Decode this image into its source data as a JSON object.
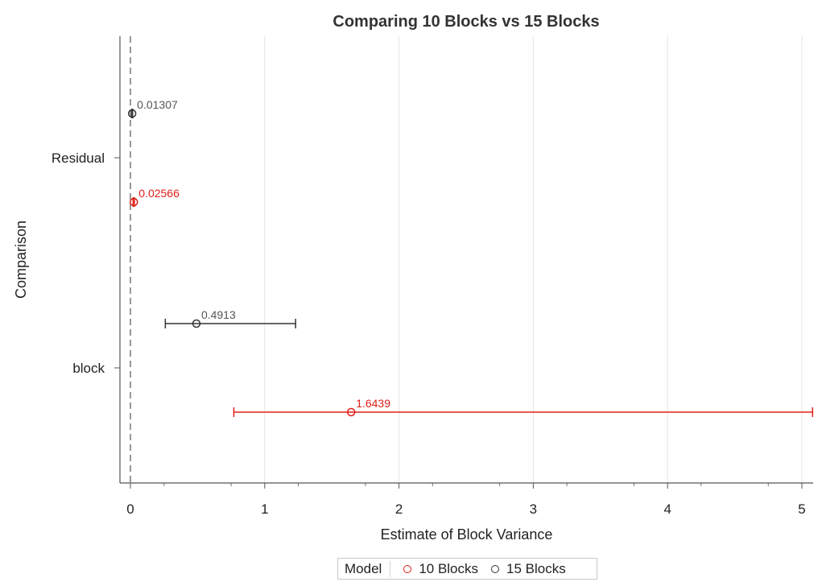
{
  "chart_data": {
    "type": "scatter",
    "title": "Comparing 10 Blocks vs 15 Blocks",
    "xlabel": "Estimate of Block Variance",
    "ylabel": "Comparison",
    "xlim": [
      0,
      5.08
    ],
    "x_ticks": [
      0,
      1,
      2,
      3,
      4,
      5
    ],
    "categories": [
      "Residual",
      "block"
    ],
    "reference_line_x": 0,
    "grid": "vertical",
    "legend": {
      "title": "Model",
      "position": "bottom-center"
    },
    "series": [
      {
        "name": "10 Blocks",
        "color": "#e0201a",
        "points": [
          {
            "category": "Residual",
            "estimate": 0.02566,
            "lower": 0.02,
            "upper": 0.03,
            "label": "0.02566"
          },
          {
            "category": "block",
            "estimate": 1.6439,
            "lower": 0.77,
            "upper": 5.08,
            "label": "1.6439"
          }
        ]
      },
      {
        "name": "15 Blocks",
        "color": "#333333",
        "points": [
          {
            "category": "Residual",
            "estimate": 0.01307,
            "lower": 0.01,
            "upper": 0.016,
            "label": "0.01307"
          },
          {
            "category": "block",
            "estimate": 0.4913,
            "lower": 0.26,
            "upper": 1.23,
            "label": "0.4913"
          }
        ]
      }
    ]
  }
}
